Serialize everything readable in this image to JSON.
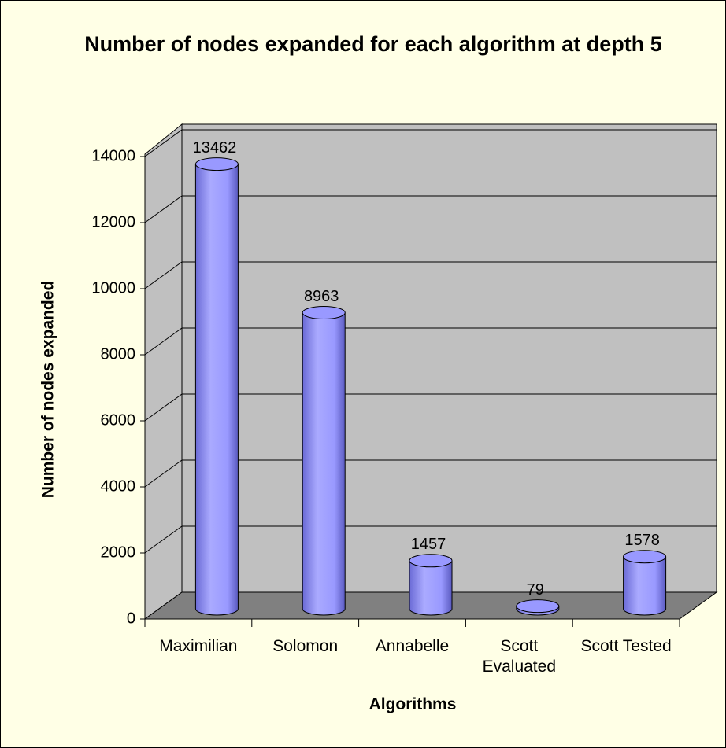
{
  "chart_data": {
    "type": "bar",
    "title": "Number of nodes expanded for each algorithm at depth 5",
    "x_label": "Algorithms",
    "y_label": "Number of nodes expanded",
    "categories": [
      "Maximilian",
      "Solomon",
      "Annabelle",
      "Scott Evaluated",
      "Scott Tested"
    ],
    "values": [
      13462,
      8963,
      1457,
      79,
      1578
    ],
    "color": "#9999ff",
    "ylim": [
      0,
      14000
    ],
    "yticks": [
      0,
      2000,
      4000,
      6000,
      8000,
      10000,
      12000,
      14000
    ],
    "grid": true
  }
}
